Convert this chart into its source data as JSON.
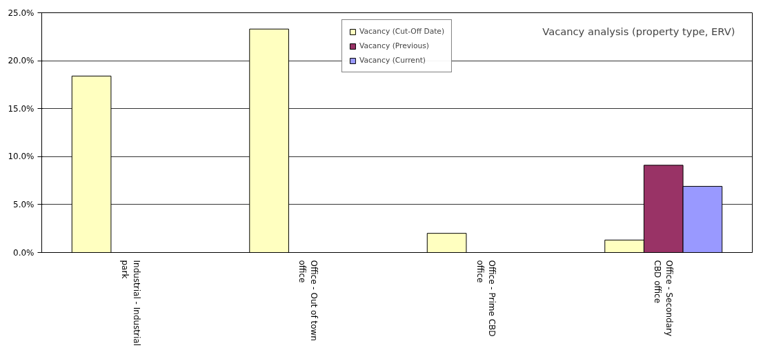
{
  "chart_data": {
    "type": "bar",
    "title": "Vacancy analysis (property type, ERV)",
    "categories": [
      "Industrial - Industrial\npark",
      "Office - Out of town\noffice",
      "Office - Prime CBD\noffice",
      "Office - Secondary\nCBD office"
    ],
    "series": [
      {
        "name": "Vacancy (Cut-Off Date)",
        "color": "#ffffc0",
        "values": [
          18.4,
          23.3,
          2.0,
          1.3
        ]
      },
      {
        "name": "Vacancy (Previous)",
        "color": "#993366",
        "values": [
          null,
          null,
          null,
          9.1
        ]
      },
      {
        "name": "Vacancy (Current)",
        "color": "#9999ff",
        "values": [
          null,
          null,
          null,
          6.9
        ]
      }
    ],
    "ylim": [
      0,
      25
    ],
    "yticks": [
      {
        "value": 0,
        "label": "0.0%"
      },
      {
        "value": 5,
        "label": "5.0%"
      },
      {
        "value": 10,
        "label": "10.0%"
      },
      {
        "value": 15,
        "label": "15.0%"
      },
      {
        "value": 20,
        "label": "20.0%"
      },
      {
        "value": 25,
        "label": "25.0%"
      }
    ],
    "grid": "y",
    "legend": "top"
  }
}
